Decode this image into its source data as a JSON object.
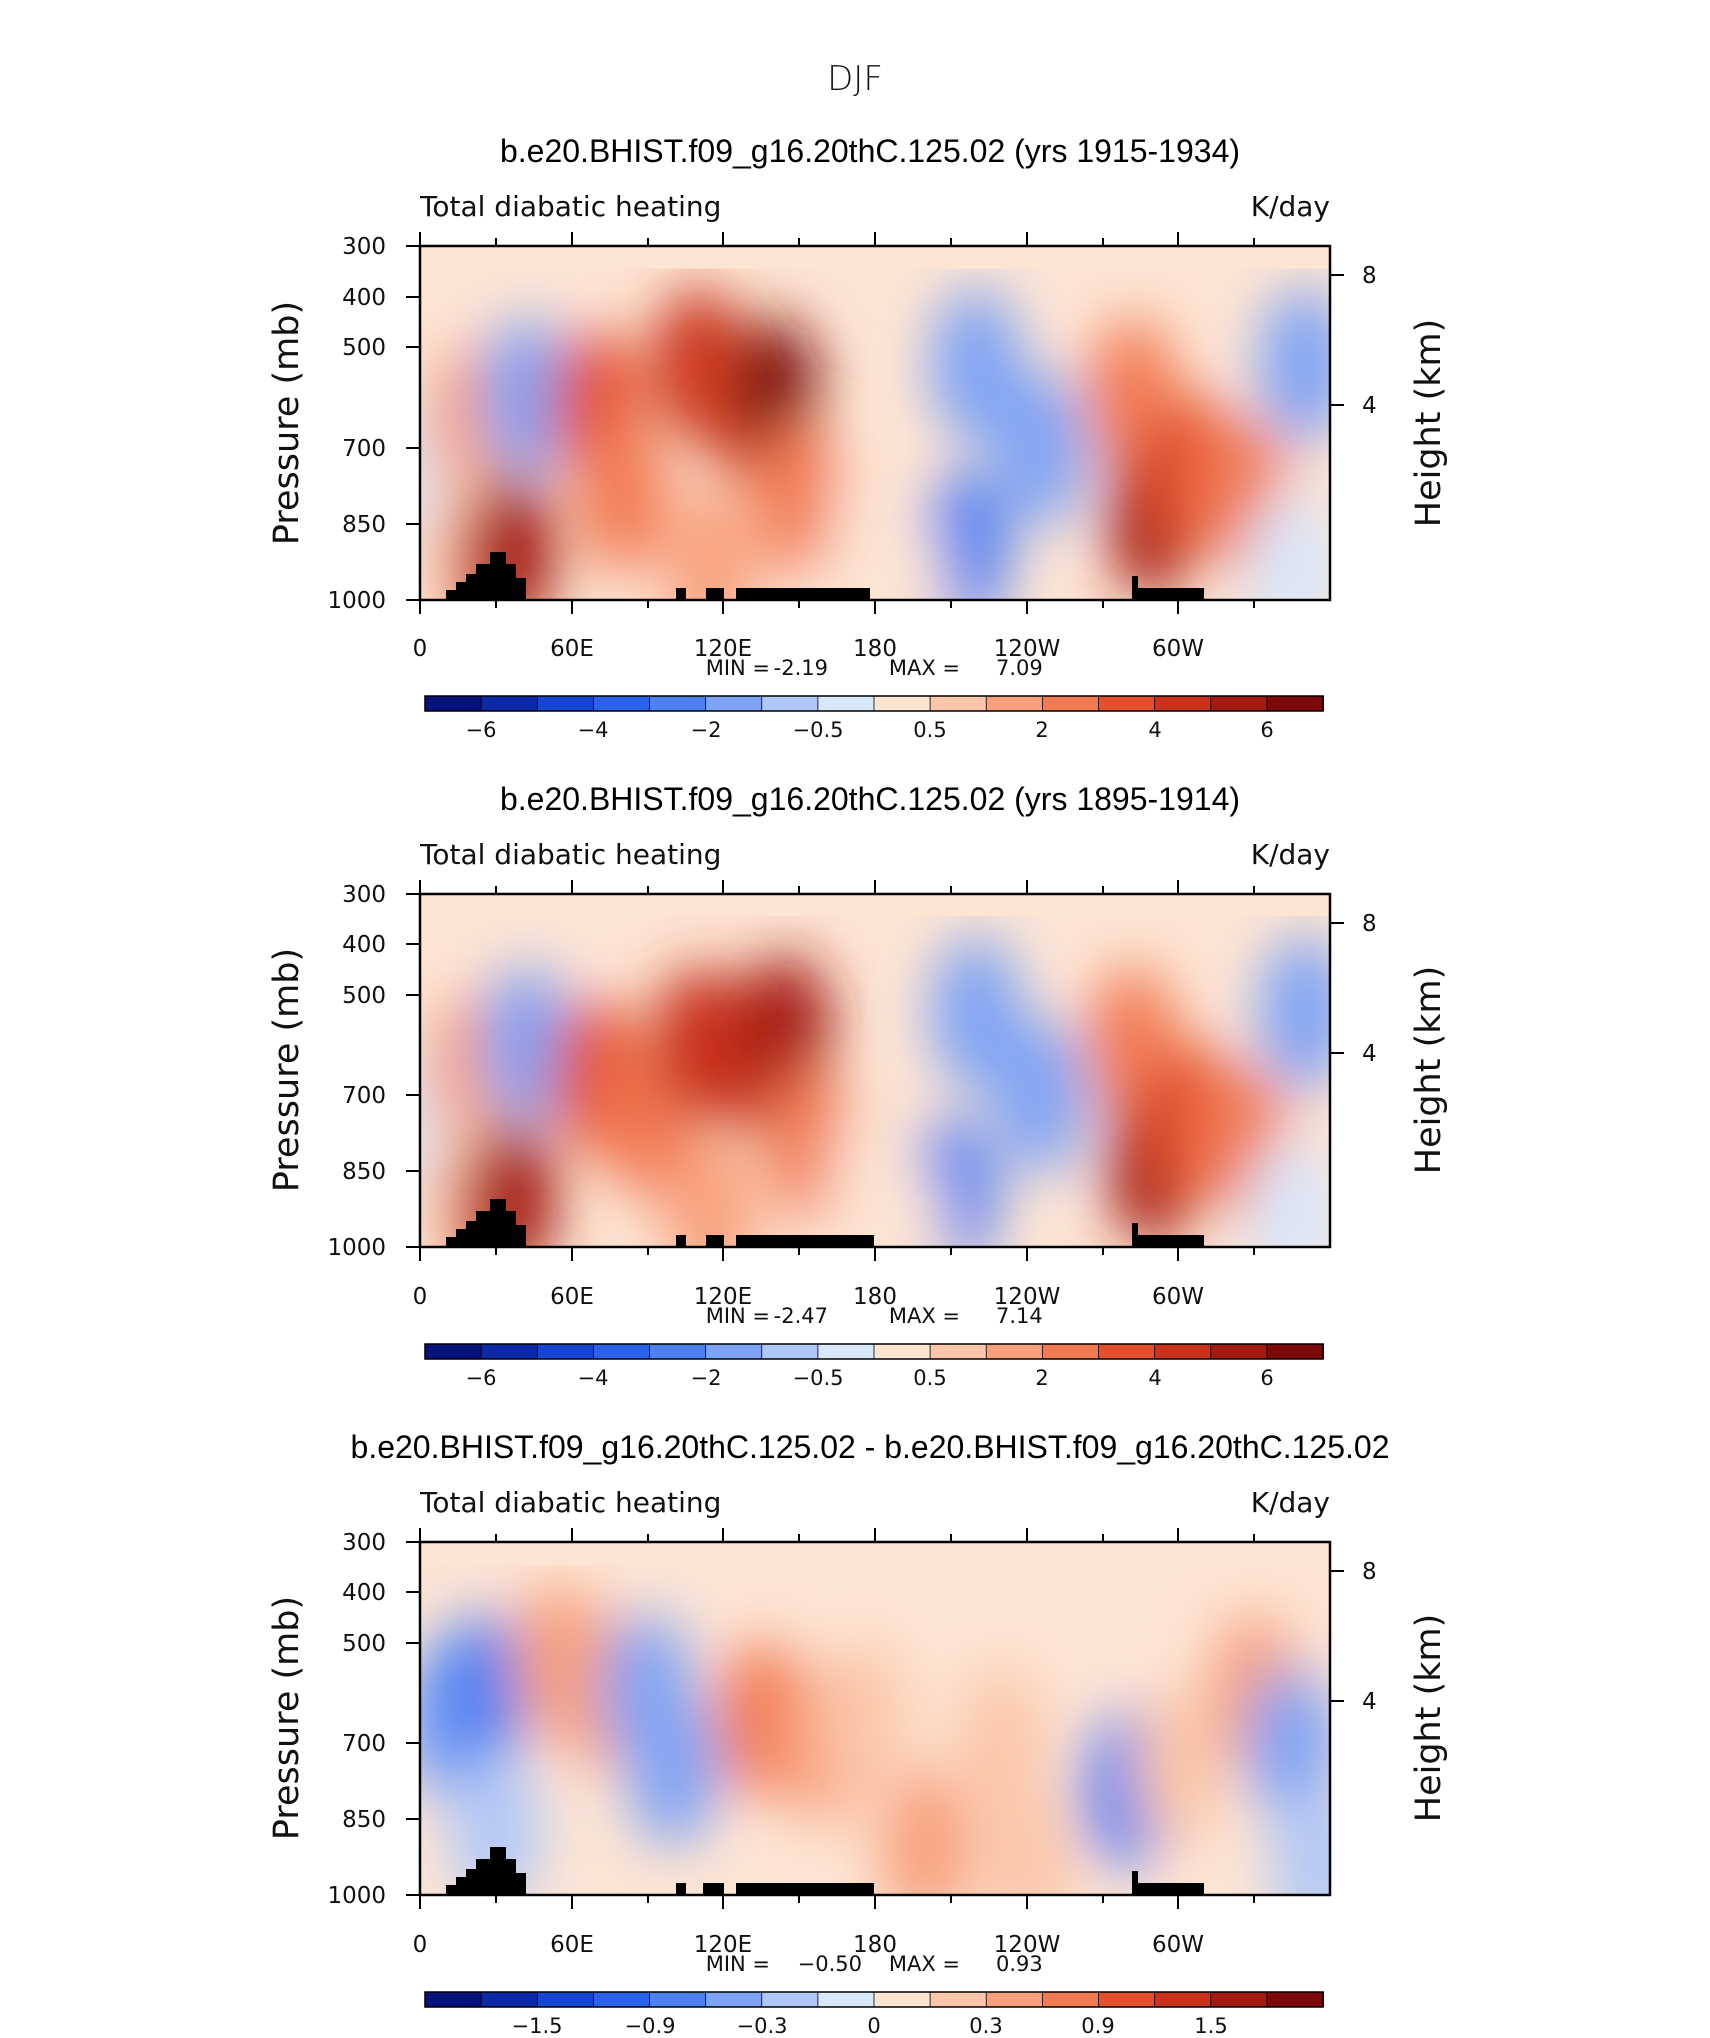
{
  "figure": {
    "title": "DJF"
  },
  "chart_data": [
    {
      "type": "heatmap",
      "title": "b.e20.BHIST.f09_g16.20thC.125.02 (yrs 1915-1934)",
      "left_string": "Total diabatic heating",
      "right_string": "K/day",
      "ylabel": "Pressure (mb)",
      "ylabel_right": "Height (km)",
      "x_tick_labels": [
        "0",
        "60E",
        "120E",
        "180",
        "120W",
        "60W"
      ],
      "y_tick_labels": [
        "300",
        "400",
        "500",
        "700",
        "850",
        "1000"
      ],
      "y_right_tick_labels": [
        "8",
        "4"
      ],
      "stats": {
        "min_label": "MIN =",
        "min": "-2.19",
        "max_label": "MAX =",
        "max": "7.09"
      },
      "colorbar": {
        "labels": [
          "−6",
          "−4",
          "−2",
          "−0.5",
          "0.5",
          "2",
          "4",
          "6"
        ],
        "label_slots": [
          1,
          3,
          5,
          7,
          9,
          11,
          13,
          15
        ]
      },
      "cells": [
        {
          "lon": 5,
          "p": 640,
          "v": -0.5
        },
        {
          "lon": 20,
          "p": 550,
          "v": 1.5
        },
        {
          "lon": 20,
          "p": 820,
          "v": 0.6
        },
        {
          "lon": 30,
          "p": 900,
          "v": 2.5
        },
        {
          "lon": 36,
          "p": 850,
          "v": 5.5
        },
        {
          "lon": 42,
          "p": 500,
          "v": -1.2
        },
        {
          "lon": 70,
          "p": 520,
          "v": 3.5
        },
        {
          "lon": 80,
          "p": 700,
          "v": 2.0
        },
        {
          "lon": 110,
          "p": 450,
          "v": 4.5
        },
        {
          "lon": 130,
          "p": 520,
          "v": 3.8
        },
        {
          "lon": 140,
          "p": 500,
          "v": 6.0
        },
        {
          "lon": 115,
          "p": 900,
          "v": 1.0
        },
        {
          "lon": 150,
          "p": 700,
          "v": 2.2
        },
        {
          "lon": 180,
          "p": 800,
          "v": 0.4
        },
        {
          "lon": 220,
          "p": 450,
          "v": -1.8
        },
        {
          "lon": 215,
          "p": 840,
          "v": -2.19
        },
        {
          "lon": 245,
          "p": 600,
          "v": -1.5
        },
        {
          "lon": 190,
          "p": 950,
          "v": 0.3
        },
        {
          "lon": 282,
          "p": 500,
          "v": 2.5
        },
        {
          "lon": 290,
          "p": 760,
          "v": 5.5
        },
        {
          "lon": 305,
          "p": 650,
          "v": 3.0
        },
        {
          "lon": 325,
          "p": 700,
          "v": 2.5
        },
        {
          "lon": 350,
          "p": 450,
          "v": -1.5
        },
        {
          "lon": 345,
          "p": 900,
          "v": -0.4
        }
      ]
    },
    {
      "type": "heatmap",
      "title": "b.e20.BHIST.f09_g16.20thC.125.02 (yrs 1895-1914)",
      "left_string": "Total diabatic heating",
      "right_string": "K/day",
      "ylabel": "Pressure (mb)",
      "ylabel_right": "Height (km)",
      "x_tick_labels": [
        "0",
        "60E",
        "120E",
        "180",
        "120W",
        "60W"
      ],
      "y_tick_labels": [
        "300",
        "400",
        "500",
        "700",
        "850",
        "1000"
      ],
      "y_right_tick_labels": [
        "8",
        "4"
      ],
      "stats": {
        "min_label": "MIN =",
        "min": "-2.47",
        "max_label": "MAX =",
        "max": "7.14"
      },
      "colorbar": {
        "labels": [
          "−6",
          "−4",
          "−2",
          "−0.5",
          "0.5",
          "2",
          "4",
          "6"
        ],
        "label_slots": [
          1,
          3,
          5,
          7,
          9,
          11,
          13,
          15
        ]
      },
      "cells": [
        {
          "lon": 5,
          "p": 640,
          "v": -0.5
        },
        {
          "lon": 20,
          "p": 550,
          "v": 1.5
        },
        {
          "lon": 20,
          "p": 820,
          "v": 0.6
        },
        {
          "lon": 30,
          "p": 900,
          "v": 2.5
        },
        {
          "lon": 36,
          "p": 850,
          "v": 5.5
        },
        {
          "lon": 42,
          "p": 500,
          "v": -1.2
        },
        {
          "lon": 70,
          "p": 560,
          "v": 3.2
        },
        {
          "lon": 90,
          "p": 650,
          "v": 2.8
        },
        {
          "lon": 110,
          "p": 500,
          "v": 4.8
        },
        {
          "lon": 130,
          "p": 520,
          "v": 4.2
        },
        {
          "lon": 145,
          "p": 480,
          "v": 5.5
        },
        {
          "lon": 115,
          "p": 900,
          "v": 1.0
        },
        {
          "lon": 155,
          "p": 700,
          "v": 2.4
        },
        {
          "lon": 180,
          "p": 800,
          "v": 0.4
        },
        {
          "lon": 220,
          "p": 450,
          "v": -2.0
        },
        {
          "lon": 210,
          "p": 840,
          "v": -2.47
        },
        {
          "lon": 245,
          "p": 600,
          "v": -1.6
        },
        {
          "lon": 190,
          "p": 950,
          "v": 0.3
        },
        {
          "lon": 282,
          "p": 500,
          "v": 2.5
        },
        {
          "lon": 290,
          "p": 760,
          "v": 5.5
        },
        {
          "lon": 305,
          "p": 650,
          "v": 3.0
        },
        {
          "lon": 325,
          "p": 700,
          "v": 2.5
        },
        {
          "lon": 350,
          "p": 450,
          "v": -1.5
        },
        {
          "lon": 345,
          "p": 900,
          "v": -0.4
        }
      ]
    },
    {
      "type": "heatmap",
      "title": "b.e20.BHIST.f09_g16.20thC.125.02 - b.e20.BHIST.f09_g16.20thC.125.02",
      "left_string": "Total diabatic heating",
      "right_string": "K/day",
      "ylabel": "Pressure (mb)",
      "ylabel_right": "Height (km)",
      "x_tick_labels": [
        "0",
        "60E",
        "120E",
        "180",
        "120W",
        "60W"
      ],
      "y_tick_labels": [
        "300",
        "400",
        "500",
        "700",
        "850",
        "1000"
      ],
      "y_right_tick_labels": [
        "8",
        "4"
      ],
      "stats": {
        "min_label": "MIN =",
        "min": "−0.50",
        "max_label": "MAX =",
        "max": "0.93"
      },
      "colorbar": {
        "labels": [
          "−1.5",
          "−0.9",
          "−0.3",
          "0",
          "0.3",
          "0.9",
          "1.5"
        ],
        "label_slots": [
          2,
          4,
          6,
          8,
          10,
          12,
          14
        ]
      },
      "cells": [
        {
          "lon": 10,
          "p": 550,
          "v": -0.25
        },
        {
          "lon": 25,
          "p": 500,
          "v": -0.35
        },
        {
          "lon": 30,
          "p": 800,
          "v": -0.1
        },
        {
          "lon": 55,
          "p": 450,
          "v": 0.35
        },
        {
          "lon": 70,
          "p": 500,
          "v": 0.3
        },
        {
          "lon": 90,
          "p": 500,
          "v": -0.3
        },
        {
          "lon": 100,
          "p": 650,
          "v": -0.2
        },
        {
          "lon": 135,
          "p": 550,
          "v": 0.6
        },
        {
          "lon": 160,
          "p": 600,
          "v": 0.3
        },
        {
          "lon": 175,
          "p": 550,
          "v": 0.15
        },
        {
          "lon": 200,
          "p": 850,
          "v": 0.5
        },
        {
          "lon": 230,
          "p": 600,
          "v": 0.2
        },
        {
          "lon": 240,
          "p": 900,
          "v": 0.15
        },
        {
          "lon": 280,
          "p": 700,
          "v": -0.4
        },
        {
          "lon": 300,
          "p": 650,
          "v": 0.2
        },
        {
          "lon": 330,
          "p": 500,
          "v": 0.3
        },
        {
          "lon": 345,
          "p": 600,
          "v": -0.2
        },
        {
          "lon": 355,
          "p": 900,
          "v": -0.15
        }
      ]
    }
  ]
}
